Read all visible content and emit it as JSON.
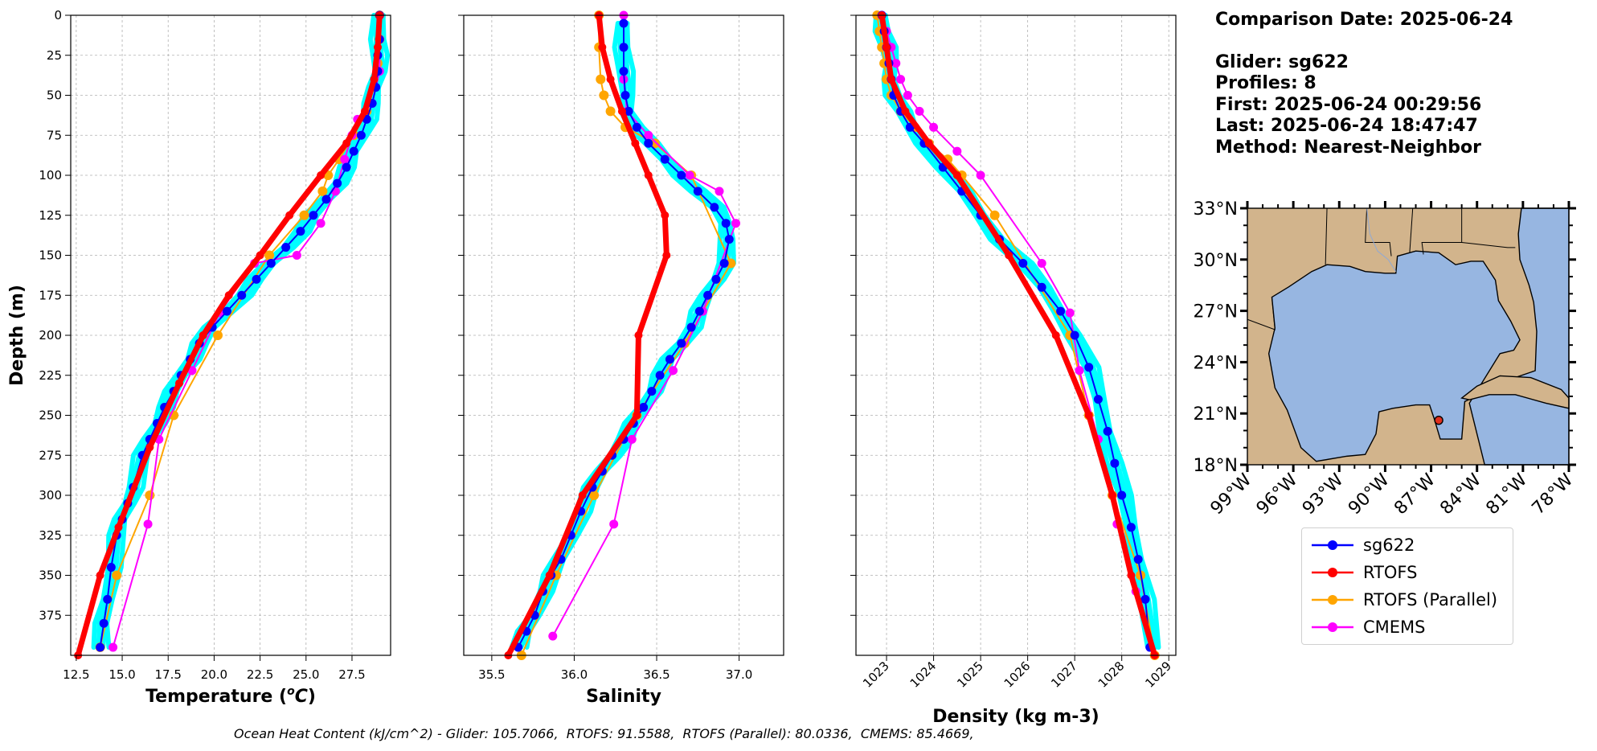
{
  "info": {
    "comparison_date": "Comparison Date: 2025-06-24",
    "glider": "Glider: sg622",
    "profiles": "Profiles: 8",
    "first": "First: 2025-06-24 00:29:56",
    "last": "Last: 2025-06-24 18:47:47",
    "method": "Method: Nearest-Neighbor"
  },
  "footer": "Ocean Heat Content (kJ/cm^2) - Glider: 105.7066,  RTOFS: 91.5588,  RTOFS (Parallel): 80.0336,  CMEMS: 85.4669,",
  "colors": {
    "glider": "#0000ff",
    "glider_raw": "#00ffff",
    "rtofs": "#ff0000",
    "rtofs_parallel": "#ffa500",
    "cmems": "#ff00ff",
    "land": "#d2b48c",
    "ocean": "#97b6e1"
  },
  "legend": [
    {
      "label": "sg622",
      "color": "#0000ff"
    },
    {
      "label": "RTOFS",
      "color": "#ff0000"
    },
    {
      "label": "RTOFS (Parallel)",
      "color": "#ffa500"
    },
    {
      "label": "CMEMS",
      "color": "#ff00ff"
    }
  ],
  "chart_data": [
    {
      "type": "line",
      "xlabel": "Temperature ($^{o}C$)",
      "ylabel": "Depth (m)",
      "xlim": [
        12.2,
        29.6
      ],
      "ylim": [
        400,
        0
      ],
      "xticks": [
        "12.5",
        "15.0",
        "17.5",
        "20.0",
        "22.5",
        "25.0",
        "27.5"
      ],
      "yticks": [
        "0",
        "25",
        "50",
        "75",
        "100",
        "125",
        "150",
        "175",
        "200",
        "225",
        "250",
        "275",
        "300",
        "325",
        "350",
        "375"
      ],
      "grid": true,
      "series": [
        {
          "name": "sg622",
          "x": [
            29.0,
            29.0,
            28.9,
            28.9,
            28.8,
            28.6,
            28.3,
            28.0,
            27.6,
            27.2,
            26.7,
            26.1,
            25.4,
            24.7,
            23.9,
            23.1,
            22.3,
            21.5,
            20.7,
            19.9,
            19.2,
            18.7,
            18.2,
            17.8,
            17.3,
            16.9,
            16.5,
            16.1,
            15.6,
            15.3,
            15.0,
            14.7,
            14.4,
            14.2,
            14.0,
            13.8
          ],
          "y": [
            0,
            15,
            25,
            35,
            45,
            55,
            65,
            75,
            85,
            95,
            105,
            115,
            125,
            135,
            145,
            155,
            165,
            175,
            185,
            195,
            205,
            215,
            225,
            235,
            245,
            255,
            265,
            275,
            295,
            305,
            315,
            325,
            345,
            365,
            380,
            395
          ]
        },
        {
          "name": "RTOFS",
          "x": [
            29.0,
            28.9,
            28.7,
            28.2,
            27.2,
            25.8,
            24.1,
            22.5,
            20.8,
            19.4,
            18.1,
            16.5,
            14.8,
            13.8,
            12.6
          ],
          "y": [
            0,
            20,
            40,
            60,
            80,
            100,
            125,
            150,
            175,
            200,
            230,
            270,
            320,
            350,
            400
          ]
        },
        {
          "name": "RTOFS (Parallel)",
          "x": [
            29.0,
            29.0,
            28.9,
            28.7,
            28.3,
            27.6,
            26.8,
            26.2,
            25.9,
            24.9,
            23.0,
            20.2,
            17.8,
            16.5,
            14.7,
            13.8
          ],
          "y": [
            0,
            15,
            30,
            45,
            60,
            75,
            90,
            100,
            110,
            125,
            150,
            200,
            250,
            300,
            350,
            395
          ]
        },
        {
          "name": "CMEMS",
          "x": [
            29.0,
            29.0,
            29.0,
            28.6,
            27.8,
            27.5,
            27.1,
            26.6,
            25.8,
            24.5,
            22.2,
            20.3,
            18.8,
            17.0,
            16.4,
            14.5
          ],
          "y": [
            0,
            15,
            35,
            55,
            65,
            75,
            90,
            110,
            130,
            150,
            155,
            186,
            222,
            265,
            318,
            395
          ]
        }
      ]
    },
    {
      "type": "line",
      "xlabel": "Salinity",
      "xlim": [
        35.33,
        37.27
      ],
      "ylim": [
        400,
        0
      ],
      "xticks": [
        "35.5",
        "36.0",
        "36.5",
        "37.0"
      ],
      "grid": true,
      "series": [
        {
          "name": "sg622",
          "x": [
            36.3,
            36.3,
            36.3,
            36.31,
            36.33,
            36.38,
            36.45,
            36.55,
            36.65,
            36.75,
            36.85,
            36.92,
            36.94,
            36.91,
            36.86,
            36.81,
            36.76,
            36.71,
            36.65,
            36.58,
            36.52,
            36.47,
            36.42,
            36.36,
            36.3,
            36.23,
            36.17,
            36.11,
            36.04,
            35.98,
            35.92,
            35.86,
            35.81,
            35.76,
            35.71,
            35.66
          ],
          "y": [
            5,
            20,
            35,
            50,
            60,
            70,
            80,
            90,
            100,
            110,
            120,
            130,
            140,
            155,
            165,
            175,
            185,
            195,
            205,
            215,
            225,
            235,
            245,
            255,
            265,
            275,
            285,
            295,
            310,
            325,
            340,
            350,
            360,
            375,
            385,
            395
          ]
        },
        {
          "name": "RTOFS",
          "x": [
            36.15,
            36.17,
            36.22,
            36.29,
            36.37,
            36.45,
            36.55,
            36.56,
            36.39,
            36.38,
            36.05,
            35.85,
            35.6
          ],
          "y": [
            0,
            20,
            40,
            60,
            80,
            100,
            125,
            150,
            200,
            250,
            300,
            350,
            400
          ]
        },
        {
          "name": "RTOFS (Parallel)",
          "x": [
            36.15,
            36.15,
            36.16,
            36.18,
            36.22,
            36.31,
            36.49,
            36.71,
            36.95,
            36.67,
            36.38,
            36.12,
            35.89,
            35.68
          ],
          "y": [
            0,
            20,
            40,
            50,
            60,
            70,
            80,
            100,
            155,
            205,
            250,
            300,
            350,
            400
          ]
        },
        {
          "name": "CMEMS",
          "x": [
            36.3,
            36.3,
            36.3,
            36.32,
            36.45,
            36.7,
            36.88,
            36.98,
            36.78,
            36.6,
            36.35,
            36.24,
            35.87
          ],
          "y": [
            0,
            20,
            40,
            60,
            75,
            100,
            110,
            130,
            185,
            222,
            265,
            318,
            388
          ]
        }
      ]
    },
    {
      "type": "line",
      "xlabel": "Density (kg m-3)",
      "xlim": [
        1022.35,
        1029.15
      ],
      "ylim": [
        400,
        0
      ],
      "xticks": [
        "1023",
        "1024",
        "1025",
        "1026",
        "1027",
        "1028",
        "1029"
      ],
      "grid": true,
      "series": [
        {
          "name": "sg622",
          "x": [
            1022.9,
            1022.95,
            1023.0,
            1023.05,
            1023.1,
            1023.15,
            1023.3,
            1023.5,
            1023.8,
            1024.2,
            1024.6,
            1025.0,
            1025.4,
            1025.9,
            1026.3,
            1026.7,
            1027.0,
            1027.3,
            1027.5,
            1027.7,
            1027.85,
            1028.0,
            1028.2,
            1028.35,
            1028.5,
            1028.6
          ],
          "y": [
            0,
            10,
            20,
            30,
            40,
            50,
            60,
            70,
            80,
            95,
            110,
            125,
            140,
            155,
            170,
            185,
            200,
            220,
            240,
            260,
            280,
            300,
            320,
            340,
            365,
            395
          ]
        },
        {
          "name": "RTOFS",
          "x": [
            1022.9,
            1023.0,
            1023.1,
            1023.4,
            1023.9,
            1024.5,
            1025.6,
            1026.6,
            1027.3,
            1027.8,
            1028.2,
            1028.7
          ],
          "y": [
            0,
            20,
            40,
            60,
            80,
            100,
            150,
            200,
            250,
            300,
            350,
            400
          ]
        },
        {
          "name": "RTOFS (Parallel)",
          "x": [
            1022.8,
            1022.85,
            1022.9,
            1022.95,
            1023.0,
            1023.1,
            1023.3,
            1023.6,
            1023.9,
            1024.3,
            1024.6,
            1025.3,
            1026.9,
            1027.3,
            1027.8,
            1028.4,
            1028.7
          ],
          "y": [
            0,
            10,
            20,
            30,
            40,
            50,
            60,
            70,
            80,
            90,
            100,
            125,
            200,
            250,
            300,
            350,
            400
          ]
        },
        {
          "name": "CMEMS",
          "x": [
            1022.9,
            1023.0,
            1023.1,
            1023.2,
            1023.3,
            1023.45,
            1023.7,
            1024.0,
            1024.5,
            1025.0,
            1026.3,
            1026.9,
            1027.1,
            1027.5,
            1027.9,
            1028.3,
            1028.6
          ],
          "y": [
            0,
            10,
            20,
            30,
            40,
            50,
            60,
            70,
            85,
            100,
            155,
            186,
            222,
            265,
            318,
            360,
            395
          ]
        }
      ]
    }
  ],
  "map": {
    "lon_labels": [
      "99°W",
      "96°W",
      "93°W",
      "90°W",
      "87°W",
      "84°W",
      "81°W",
      "78°W"
    ],
    "lat_labels": [
      "33°N",
      "30°N",
      "27°N",
      "24°N",
      "21°N",
      "18°N"
    ],
    "marker": {
      "lon": -86.5,
      "lat": 20.6
    }
  }
}
